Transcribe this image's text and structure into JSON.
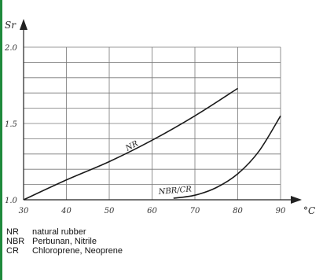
{
  "chart_data": {
    "type": "line",
    "ylabel": "Sr",
    "xlabel": "°C",
    "xlim": [
      30,
      90
    ],
    "ylim": [
      1.0,
      2.0
    ],
    "x_ticks": [
      "30",
      "40",
      "50",
      "60",
      "70",
      "80",
      "90"
    ],
    "y_ticks": [
      {
        "value": 1.0,
        "label": "1.0"
      },
      {
        "value": 1.5,
        "label": "1.5"
      },
      {
        "value": 2.0,
        "label": "2.0"
      }
    ],
    "grid": true,
    "series": [
      {
        "name": "NR",
        "x": [
          30,
          40,
          50,
          60,
          70,
          80
        ],
        "y": [
          1.0,
          1.13,
          1.25,
          1.39,
          1.55,
          1.73
        ]
      },
      {
        "name": "NBR/CR",
        "x": [
          65,
          70,
          75,
          80,
          85,
          90
        ],
        "y": [
          1.01,
          1.03,
          1.08,
          1.17,
          1.32,
          1.55
        ]
      }
    ],
    "colors": {
      "line": "#1a1a1a",
      "grid": "#777777",
      "axis": "#222222"
    }
  },
  "legend": {
    "items": [
      {
        "key": "NR",
        "text": "natural rubber"
      },
      {
        "key": "NBR",
        "text": "Perbunan, Nitrile"
      },
      {
        "key": "CR",
        "text": "Chloroprene, Neoprene"
      }
    ]
  }
}
